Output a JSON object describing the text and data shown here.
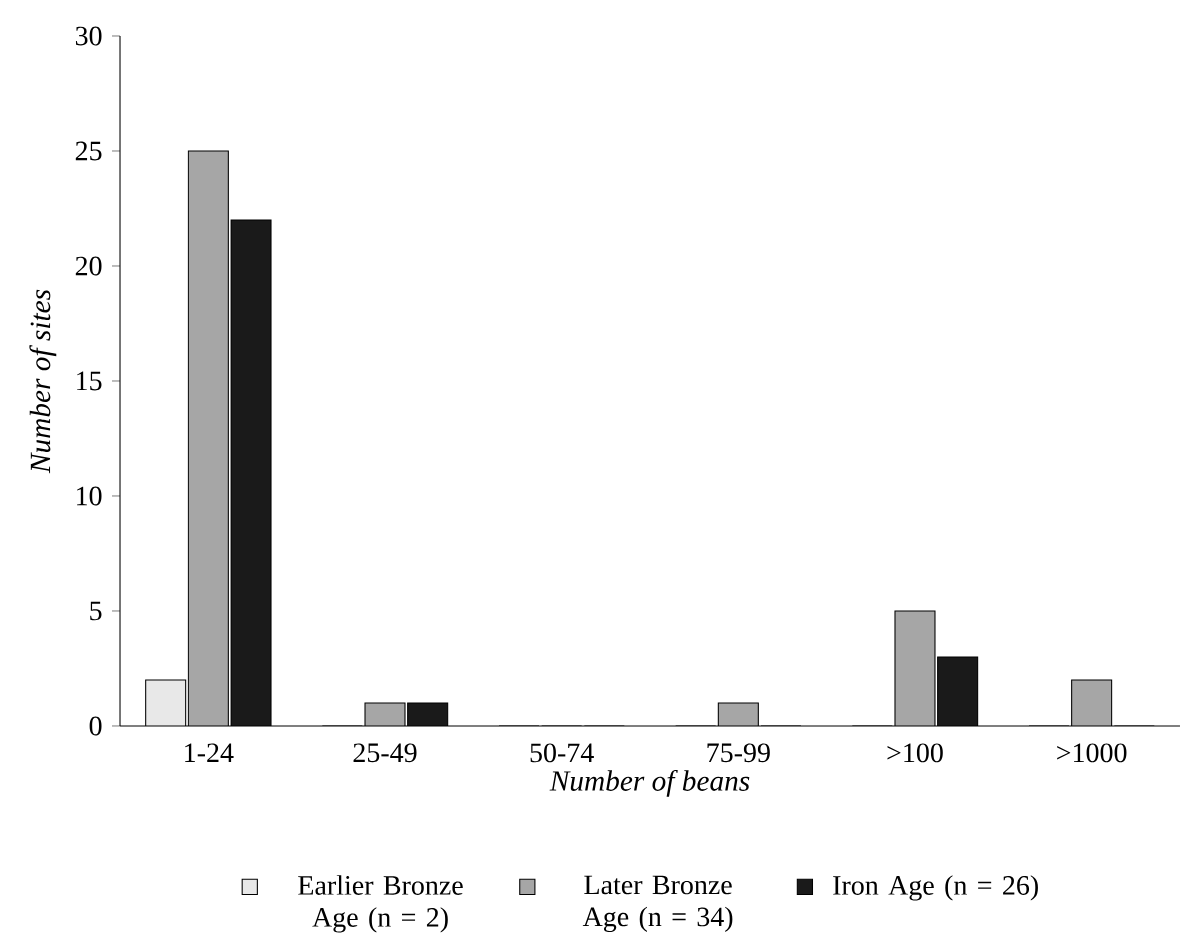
{
  "chart_data": {
    "type": "bar",
    "xlabel": "Number of beans",
    "ylabel": "Number of sites",
    "categories": [
      "1-24",
      "25-49",
      "50-74",
      "75-99",
      ">100",
      ">1000"
    ],
    "series": [
      {
        "name": "Earlier Bronze Age (n = 2)",
        "color": "#e8e8e8",
        "values": [
          2,
          0,
          0,
          0,
          0,
          0
        ]
      },
      {
        "name": "Later Bronze Age (n = 34)",
        "color": "#a6a6a6",
        "values": [
          25,
          1,
          0,
          1,
          5,
          2
        ]
      },
      {
        "name": "Iron Age (n = 26)",
        "color": "#1a1a1a",
        "values": [
          22,
          1,
          0,
          0,
          3,
          0
        ]
      }
    ],
    "ylim": [
      0,
      30
    ],
    "yticks": [
      0,
      5,
      10,
      15,
      20,
      25,
      30
    ],
    "legend": "bottom",
    "grid": false
  }
}
